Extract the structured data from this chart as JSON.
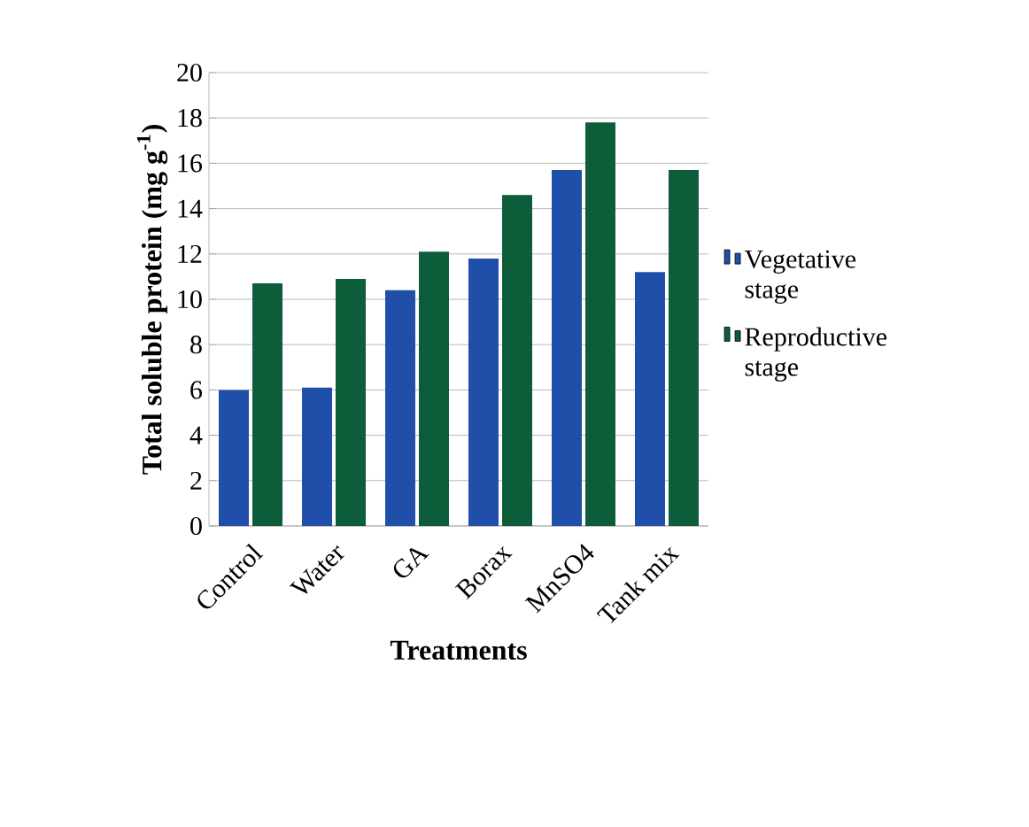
{
  "chart_data": {
    "type": "bar",
    "xlabel": "Treatments",
    "ylabel": "Total soluble protein (mg g$^{-1}$)",
    "categories": [
      "Control",
      "Water",
      "GA",
      "Borax",
      "MnSO4",
      "Tank mix"
    ],
    "series": [
      {
        "name": "Vegetative stage",
        "color": "#1f4fa8",
        "values": [
          6.0,
          6.1,
          10.4,
          11.8,
          15.7,
          11.2
        ]
      },
      {
        "name": "Reproductive stage",
        "color": "#0d5c3a",
        "values": [
          10.7,
          10.9,
          12.1,
          14.6,
          17.8,
          15.7
        ]
      }
    ],
    "ylim": [
      0,
      20
    ],
    "yticks": [
      0,
      2,
      4,
      6,
      8,
      10,
      12,
      14,
      16,
      18,
      20
    ],
    "grid": "y",
    "legend": "right"
  }
}
